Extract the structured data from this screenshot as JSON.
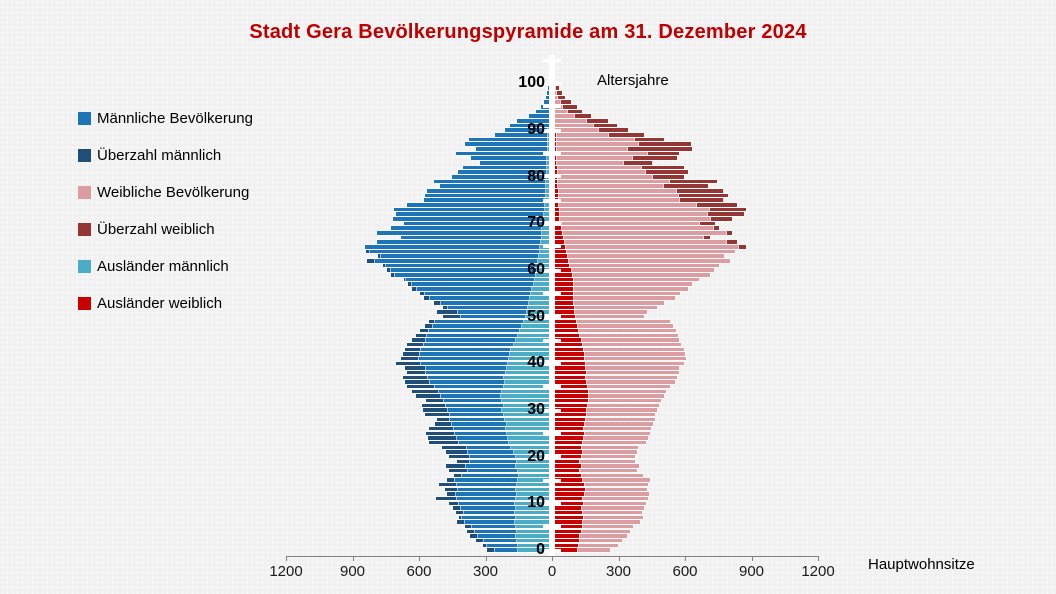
{
  "title": {
    "text": "Stadt Gera Bevölkerungspyramide am 31. Dezember 2024",
    "color": "#C00000"
  },
  "legend": {
    "items": [
      {
        "label": "Männliche Bevölkerung",
        "color": "#1B75B7"
      },
      {
        "label": "Überzahl männlich",
        "color": "#1F4E79"
      },
      {
        "label": "Weibliche Bevölkerung",
        "color": "#DB9DA2"
      },
      {
        "label": "Überzahl weiblich",
        "color": "#943634"
      },
      {
        "label": "Ausländer männlich",
        "color": "#4BACC6"
      },
      {
        "label": "Ausländer weiblich",
        "color": "#C80000"
      }
    ]
  },
  "chart_data": {
    "type": "bar",
    "subtype": "population-pyramid",
    "title": "Stadt Gera Bevölkerungspyramide am 31. Dezember 2024",
    "xlabel": "Hauptwohnsitze",
    "age_axis_label": "Altersjahre",
    "age_min": 0,
    "age_max": 100,
    "age_tick_label_interval": 10,
    "age_tick_interval": 5,
    "x_tick_labels": [
      "1200",
      "900",
      "600",
      "300",
      "0",
      "300",
      "600",
      "900",
      "1200"
    ],
    "x_tick_values": [
      -1200,
      -900,
      -600,
      -300,
      0,
      300,
      600,
      900,
      1200
    ],
    "x_max": 1200,
    "legend_note": "Surplus segments are derived: Überzahl männlich = male-female where male>female; Überzahl weiblich = female-male where female>male. Ausländer bars overlay from axis outward.",
    "series": [
      {
        "name": "Männliche Bevölkerung",
        "side": "left",
        "color": "#1B75B7",
        "values": [
          280,
          300,
          330,
          355,
          370,
          380,
          415,
          405,
          420,
          435,
          450,
          510,
          460,
          470,
          495,
          460,
          430,
          450,
          465,
          415,
          450,
          465,
          485,
          540,
          545,
          555,
          540,
          515,
          505,
          560,
          570,
          575,
          555,
          600,
          620,
          640,
          650,
          660,
          640,
          650,
          690,
          670,
          660,
          650,
          640,
          620,
          600,
          580,
          560,
          540,
          480,
          505,
          480,
          520,
          565,
          580,
          620,
          635,
          655,
          715,
          730,
          750,
          820,
          770,
          825,
          830,
          775,
          670,
          775,
          715,
          655,
          705,
          690,
          700,
          640,
          565,
          560,
          550,
          490,
          520,
          440,
          410,
          390,
          310,
          350,
          420,
          330,
          380,
          360,
          245,
          200,
          175,
          145,
          90,
          60,
          35,
          25,
          15,
          10,
          5,
          3
        ]
      },
      {
        "name": "Weibliche Bevölkerung",
        "side": "right",
        "color": "#DB9DA2",
        "values": [
          250,
          285,
          300,
          325,
          340,
          350,
          385,
          395,
          390,
          400,
          410,
          420,
          425,
          415,
          420,
          430,
          395,
          370,
          380,
          360,
          360,
          370,
          375,
          410,
          420,
          430,
          435,
          440,
          450,
          450,
          460,
          470,
          480,
          490,
          500,
          520,
          540,
          550,
          560,
          560,
          580,
          590,
          585,
          580,
          570,
          560,
          555,
          545,
          530,
          520,
          400,
          415,
          460,
          490,
          540,
          565,
          600,
          620,
          650,
          700,
          715,
          740,
          790,
          760,
          810,
          860,
          820,
          700,
          800,
          740,
          720,
          800,
          850,
          860,
          820,
          760,
          780,
          760,
          690,
          730,
          580,
          600,
          580,
          440,
          550,
          560,
          620,
          615,
          490,
          400,
          330,
          280,
          240,
          160,
          120,
          100,
          70,
          45,
          30,
          18,
          10
        ]
      },
      {
        "name": "Ausländer männlich",
        "side": "left",
        "color": "#4BACC6",
        "values": [
          140,
          140,
          145,
          150,
          145,
          150,
          155,
          150,
          155,
          150,
          155,
          150,
          145,
          150,
          145,
          140,
          135,
          140,
          150,
          145,
          150,
          160,
          170,
          180,
          185,
          190,
          195,
          190,
          200,
          205,
          210,
          205,
          210,
          215,
          210,
          205,
          200,
          205,
          195,
          190,
          185,
          180,
          175,
          170,
          160,
          150,
          140,
          130,
          120,
          115,
          105,
          100,
          95,
          90,
          85,
          80,
          75,
          70,
          65,
          60,
          55,
          50,
          50,
          45,
          40,
          40,
          35,
          30,
          30,
          30,
          25,
          25,
          25,
          20,
          20,
          20,
          15,
          15,
          15,
          15,
          10,
          10,
          10,
          10,
          10,
          5,
          5,
          5,
          5,
          5,
          5,
          0,
          0,
          0,
          0,
          0,
          0,
          0,
          0,
          0,
          0
        ]
      },
      {
        "name": "Ausländer weiblich",
        "side": "right",
        "color": "#C80000",
        "values": [
          100,
          105,
          110,
          110,
          115,
          120,
          120,
          125,
          120,
          115,
          125,
          120,
          130,
          135,
          130,
          120,
          115,
          110,
          115,
          110,
          115,
          120,
          115,
          120,
          125,
          130,
          125,
          130,
          135,
          140,
          140,
          145,
          150,
          150,
          150,
          145,
          140,
          135,
          140,
          135,
          135,
          130,
          130,
          125,
          120,
          115,
          110,
          105,
          100,
          95,
          90,
          85,
          85,
          80,
          80,
          80,
          80,
          80,
          80,
          75,
          70,
          65,
          60,
          55,
          50,
          45,
          40,
          35,
          30,
          25,
          25,
          20,
          20,
          20,
          15,
          15,
          15,
          15,
          10,
          10,
          10,
          10,
          10,
          5,
          5,
          5,
          5,
          5,
          5,
          5,
          0,
          0,
          0,
          0,
          0,
          0,
          0,
          0,
          0,
          0,
          0
        ]
      }
    ],
    "surplus_colors": {
      "male": "#1F4E79",
      "female": "#943634"
    }
  }
}
